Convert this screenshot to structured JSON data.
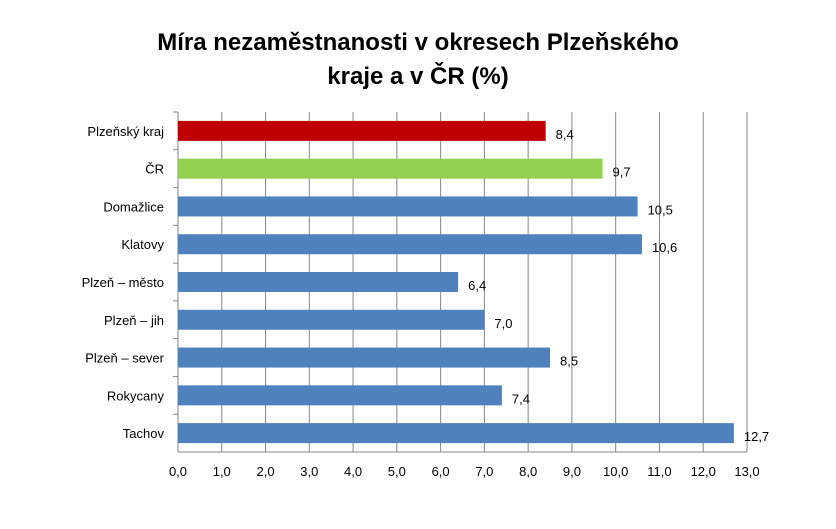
{
  "chart_data": {
    "type": "bar",
    "orientation": "horizontal",
    "title_lines": [
      "Míra nezaměstnanosti v okresech Plzeňského",
      "kraje a v ČR (%)"
    ],
    "categories": [
      "Plzeňský kraj",
      "ČR",
      "Domažlice",
      "Klatovy",
      "Plzeň – město",
      "Plzeň – jih",
      "Plzeň – sever",
      "Rokycany",
      "Tachov"
    ],
    "values": [
      8.4,
      9.7,
      10.5,
      10.6,
      6.4,
      7.0,
      8.5,
      7.4,
      12.7
    ],
    "value_labels": [
      "8,4",
      "9,7",
      "10,5",
      "10,6",
      "6,4",
      "7,0",
      "8,5",
      "7,4",
      "12,7"
    ],
    "colors": [
      "#C00000",
      "#92D050",
      "#4F81BD",
      "#4F81BD",
      "#4F81BD",
      "#4F81BD",
      "#4F81BD",
      "#4F81BD",
      "#4F81BD"
    ],
    "xlim": [
      0,
      13
    ],
    "xticks": [
      "0,0",
      "1,0",
      "2,0",
      "3,0",
      "4,0",
      "5,0",
      "6,0",
      "7,0",
      "8,0",
      "9,0",
      "10,0",
      "11,0",
      "12,0",
      "13,0"
    ],
    "grid": true,
    "legend": "none"
  }
}
